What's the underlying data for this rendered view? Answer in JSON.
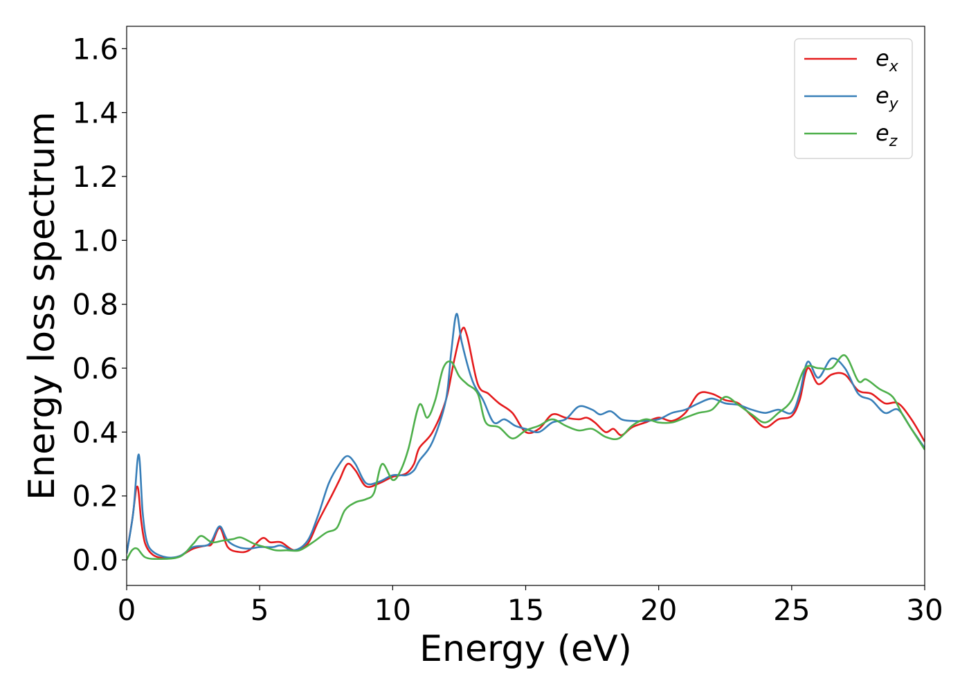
{
  "chart_data": {
    "type": "line",
    "title": "",
    "xlabel": "Energy (eV)",
    "ylabel": "Energy loss spectrum",
    "xlim": [
      0,
      30
    ],
    "ylim": [
      -0.08,
      1.67
    ],
    "xticks": [
      "0",
      "5",
      "10",
      "15",
      "20",
      "25",
      "30"
    ],
    "yticks": [
      "0.0",
      "0.2",
      "0.4",
      "0.6",
      "0.8",
      "1.0",
      "1.2",
      "1.4",
      "1.6"
    ],
    "grid": false,
    "legend_position": "top-right",
    "series": [
      {
        "name": "e_x",
        "legend_main": "e",
        "legend_sub": "x",
        "color": "#e41a1c",
        "points": [
          [
            0,
            0.02
          ],
          [
            0.2,
            0.12
          ],
          [
            0.4,
            0.23
          ],
          [
            0.55,
            0.12
          ],
          [
            0.7,
            0.05
          ],
          [
            1.0,
            0.015
          ],
          [
            1.5,
            0.005
          ],
          [
            2.0,
            0.012
          ],
          [
            2.5,
            0.035
          ],
          [
            3.0,
            0.045
          ],
          [
            3.2,
            0.05
          ],
          [
            3.5,
            0.1
          ],
          [
            3.8,
            0.04
          ],
          [
            4.2,
            0.025
          ],
          [
            4.6,
            0.03
          ],
          [
            5.1,
            0.068
          ],
          [
            5.4,
            0.055
          ],
          [
            5.8,
            0.055
          ],
          [
            6.3,
            0.03
          ],
          [
            6.8,
            0.05
          ],
          [
            7.2,
            0.12
          ],
          [
            7.7,
            0.2
          ],
          [
            8.0,
            0.25
          ],
          [
            8.3,
            0.3
          ],
          [
            8.6,
            0.28
          ],
          [
            9.0,
            0.23
          ],
          [
            9.5,
            0.24
          ],
          [
            10.0,
            0.26
          ],
          [
            10.5,
            0.27
          ],
          [
            10.8,
            0.3
          ],
          [
            11.0,
            0.35
          ],
          [
            11.5,
            0.4
          ],
          [
            12.0,
            0.5
          ],
          [
            12.3,
            0.62
          ],
          [
            12.6,
            0.72
          ],
          [
            12.8,
            0.7
          ],
          [
            13.2,
            0.55
          ],
          [
            13.6,
            0.52
          ],
          [
            14.0,
            0.49
          ],
          [
            14.5,
            0.46
          ],
          [
            15.0,
            0.4
          ],
          [
            15.5,
            0.41
          ],
          [
            16.0,
            0.455
          ],
          [
            16.5,
            0.445
          ],
          [
            17.0,
            0.44
          ],
          [
            17.3,
            0.445
          ],
          [
            17.6,
            0.43
          ],
          [
            18.0,
            0.4
          ],
          [
            18.3,
            0.41
          ],
          [
            18.6,
            0.39
          ],
          [
            19.0,
            0.415
          ],
          [
            19.5,
            0.43
          ],
          [
            20.0,
            0.445
          ],
          [
            20.5,
            0.435
          ],
          [
            21.0,
            0.46
          ],
          [
            21.5,
            0.52
          ],
          [
            22.0,
            0.52
          ],
          [
            22.5,
            0.5
          ],
          [
            23.0,
            0.49
          ],
          [
            23.5,
            0.45
          ],
          [
            24.0,
            0.415
          ],
          [
            24.5,
            0.44
          ],
          [
            25.0,
            0.45
          ],
          [
            25.3,
            0.5
          ],
          [
            25.6,
            0.6
          ],
          [
            26.0,
            0.55
          ],
          [
            26.5,
            0.58
          ],
          [
            27.0,
            0.58
          ],
          [
            27.5,
            0.53
          ],
          [
            28.0,
            0.52
          ],
          [
            28.5,
            0.49
          ],
          [
            29.0,
            0.49
          ],
          [
            29.5,
            0.44
          ],
          [
            30.0,
            0.37
          ]
        ]
      },
      {
        "name": "e_y",
        "legend_main": "e",
        "legend_sub": "y",
        "color": "#377eb8",
        "points": [
          [
            0,
            0.02
          ],
          [
            0.25,
            0.15
          ],
          [
            0.45,
            0.33
          ],
          [
            0.6,
            0.15
          ],
          [
            0.75,
            0.06
          ],
          [
            1.0,
            0.025
          ],
          [
            1.5,
            0.008
          ],
          [
            2.0,
            0.012
          ],
          [
            2.5,
            0.04
          ],
          [
            3.0,
            0.045
          ],
          [
            3.2,
            0.06
          ],
          [
            3.5,
            0.105
          ],
          [
            3.8,
            0.06
          ],
          [
            4.2,
            0.04
          ],
          [
            4.6,
            0.035
          ],
          [
            5.0,
            0.04
          ],
          [
            5.5,
            0.04
          ],
          [
            5.8,
            0.045
          ],
          [
            6.3,
            0.03
          ],
          [
            6.8,
            0.06
          ],
          [
            7.2,
            0.14
          ],
          [
            7.6,
            0.24
          ],
          [
            8.0,
            0.3
          ],
          [
            8.3,
            0.325
          ],
          [
            8.6,
            0.3
          ],
          [
            9.0,
            0.24
          ],
          [
            9.5,
            0.245
          ],
          [
            10.0,
            0.265
          ],
          [
            10.5,
            0.265
          ],
          [
            10.8,
            0.28
          ],
          [
            11.0,
            0.31
          ],
          [
            11.5,
            0.37
          ],
          [
            12.0,
            0.5
          ],
          [
            12.2,
            0.65
          ],
          [
            12.4,
            0.77
          ],
          [
            12.6,
            0.68
          ],
          [
            13.0,
            0.56
          ],
          [
            13.4,
            0.5
          ],
          [
            13.8,
            0.43
          ],
          [
            14.2,
            0.44
          ],
          [
            14.6,
            0.42
          ],
          [
            15.0,
            0.41
          ],
          [
            15.5,
            0.4
          ],
          [
            16.0,
            0.43
          ],
          [
            16.5,
            0.44
          ],
          [
            17.0,
            0.48
          ],
          [
            17.5,
            0.47
          ],
          [
            17.8,
            0.455
          ],
          [
            18.2,
            0.465
          ],
          [
            18.6,
            0.44
          ],
          [
            19.0,
            0.435
          ],
          [
            19.5,
            0.435
          ],
          [
            20.0,
            0.44
          ],
          [
            20.5,
            0.46
          ],
          [
            21.0,
            0.47
          ],
          [
            21.5,
            0.49
          ],
          [
            22.0,
            0.505
          ],
          [
            22.5,
            0.49
          ],
          [
            23.0,
            0.485
          ],
          [
            23.5,
            0.47
          ],
          [
            24.0,
            0.46
          ],
          [
            24.5,
            0.47
          ],
          [
            25.0,
            0.46
          ],
          [
            25.3,
            0.52
          ],
          [
            25.6,
            0.62
          ],
          [
            26.0,
            0.57
          ],
          [
            26.5,
            0.63
          ],
          [
            27.0,
            0.6
          ],
          [
            27.5,
            0.52
          ],
          [
            28.0,
            0.5
          ],
          [
            28.5,
            0.46
          ],
          [
            29.0,
            0.47
          ],
          [
            29.5,
            0.41
          ],
          [
            30.0,
            0.35
          ]
        ]
      },
      {
        "name": "e_z",
        "legend_main": "e",
        "legend_sub": "z",
        "color": "#4daf4a",
        "points": [
          [
            0,
            0.0
          ],
          [
            0.2,
            0.03
          ],
          [
            0.4,
            0.035
          ],
          [
            0.7,
            0.008
          ],
          [
            1.2,
            0.003
          ],
          [
            2.0,
            0.01
          ],
          [
            2.5,
            0.05
          ],
          [
            2.8,
            0.075
          ],
          [
            3.2,
            0.055
          ],
          [
            3.6,
            0.06
          ],
          [
            4.0,
            0.065
          ],
          [
            4.3,
            0.07
          ],
          [
            4.8,
            0.05
          ],
          [
            5.2,
            0.04
          ],
          [
            5.6,
            0.03
          ],
          [
            6.0,
            0.03
          ],
          [
            6.5,
            0.03
          ],
          [
            7.0,
            0.055
          ],
          [
            7.5,
            0.085
          ],
          [
            7.9,
            0.1
          ],
          [
            8.2,
            0.155
          ],
          [
            8.6,
            0.18
          ],
          [
            9.0,
            0.19
          ],
          [
            9.3,
            0.21
          ],
          [
            9.6,
            0.3
          ],
          [
            10.0,
            0.25
          ],
          [
            10.3,
            0.28
          ],
          [
            10.6,
            0.35
          ],
          [
            11.0,
            0.485
          ],
          [
            11.3,
            0.445
          ],
          [
            11.6,
            0.5
          ],
          [
            11.9,
            0.6
          ],
          [
            12.2,
            0.62
          ],
          [
            12.5,
            0.575
          ],
          [
            12.8,
            0.55
          ],
          [
            13.2,
            0.52
          ],
          [
            13.5,
            0.43
          ],
          [
            14.0,
            0.415
          ],
          [
            14.5,
            0.38
          ],
          [
            15.0,
            0.405
          ],
          [
            15.5,
            0.42
          ],
          [
            16.0,
            0.44
          ],
          [
            16.5,
            0.42
          ],
          [
            17.0,
            0.405
          ],
          [
            17.5,
            0.41
          ],
          [
            18.0,
            0.385
          ],
          [
            18.5,
            0.38
          ],
          [
            19.0,
            0.42
          ],
          [
            19.5,
            0.44
          ],
          [
            20.0,
            0.43
          ],
          [
            20.5,
            0.43
          ],
          [
            21.0,
            0.445
          ],
          [
            21.5,
            0.46
          ],
          [
            22.0,
            0.47
          ],
          [
            22.5,
            0.51
          ],
          [
            23.0,
            0.485
          ],
          [
            23.5,
            0.455
          ],
          [
            24.0,
            0.43
          ],
          [
            24.5,
            0.46
          ],
          [
            25.0,
            0.5
          ],
          [
            25.5,
            0.6
          ],
          [
            26.0,
            0.6
          ],
          [
            26.5,
            0.6
          ],
          [
            27.0,
            0.64
          ],
          [
            27.5,
            0.56
          ],
          [
            27.8,
            0.565
          ],
          [
            28.3,
            0.535
          ],
          [
            28.8,
            0.51
          ],
          [
            29.2,
            0.45
          ],
          [
            30.0,
            0.345
          ]
        ]
      }
    ]
  }
}
